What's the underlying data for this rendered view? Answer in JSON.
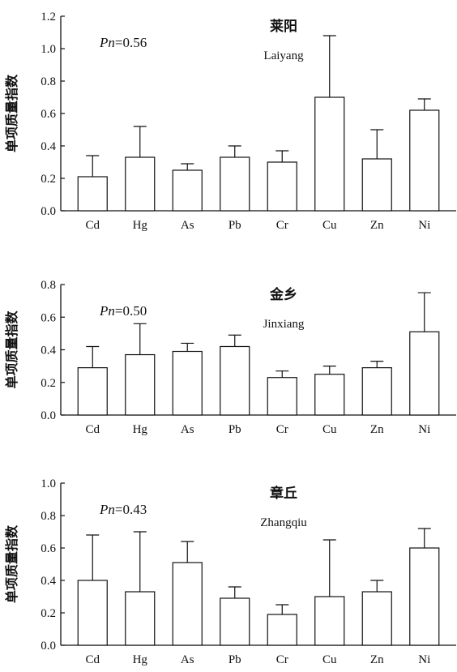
{
  "chart_data": [
    {
      "type": "bar",
      "title": "莱阳",
      "subtitle": "Laiyang",
      "annotation": {
        "label": "Pn",
        "value": "=0.56"
      },
      "ylabel": "单项质量指数",
      "categories": [
        "Cd",
        "Hg",
        "As",
        "Pb",
        "Cr",
        "Cu",
        "Zn",
        "Ni"
      ],
      "values": [
        0.21,
        0.33,
        0.25,
        0.33,
        0.3,
        0.7,
        0.32,
        0.62
      ],
      "error_upper": [
        0.34,
        0.52,
        0.29,
        0.4,
        0.37,
        1.08,
        0.5,
        0.69
      ],
      "ylim": [
        0,
        1.2
      ],
      "yticks": [
        "0.0",
        "0.2",
        "0.4",
        "0.6",
        "0.8",
        "1.0",
        "1.2"
      ],
      "grid": false
    },
    {
      "type": "bar",
      "title": "金乡",
      "subtitle": "Jinxiang",
      "annotation": {
        "label": "Pn",
        "value": "=0.50"
      },
      "ylabel": "单项质量指数",
      "categories": [
        "Cd",
        "Hg",
        "As",
        "Pb",
        "Cr",
        "Cu",
        "Zn",
        "Ni"
      ],
      "values": [
        0.29,
        0.37,
        0.39,
        0.42,
        0.23,
        0.25,
        0.29,
        0.51
      ],
      "error_upper": [
        0.42,
        0.56,
        0.44,
        0.49,
        0.27,
        0.3,
        0.33,
        0.75
      ],
      "ylim": [
        0,
        0.8
      ],
      "yticks": [
        "0.0",
        "0.2",
        "0.4",
        "0.6",
        "0.8"
      ],
      "grid": false
    },
    {
      "type": "bar",
      "title": "章丘",
      "subtitle": "Zhangqiu",
      "annotation": {
        "label": "Pn",
        "value": "=0.43"
      },
      "ylabel": "单项质量指数",
      "categories": [
        "Cd",
        "Hg",
        "As",
        "Pb",
        "Cr",
        "Cu",
        "Zn",
        "Ni"
      ],
      "values": [
        0.4,
        0.33,
        0.51,
        0.29,
        0.19,
        0.3,
        0.33,
        0.6
      ],
      "error_upper": [
        0.68,
        0.7,
        0.64,
        0.36,
        0.25,
        0.65,
        0.4,
        0.72
      ],
      "ylim": [
        0,
        1.0
      ],
      "yticks": [
        "0.0",
        "0.2",
        "0.4",
        "0.6",
        "0.8",
        "1.0"
      ],
      "grid": false
    }
  ]
}
